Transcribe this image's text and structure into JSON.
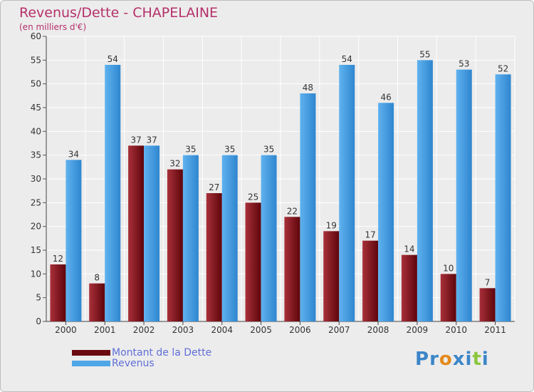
{
  "chart_data": {
    "type": "bar",
    "title": "Revenus/Dette - CHAPELAINE",
    "subtitle": "(en milliers d'€)",
    "categories": [
      "2000",
      "2001",
      "2002",
      "2003",
      "2004",
      "2005",
      "2006",
      "2007",
      "2008",
      "2009",
      "2010",
      "2011"
    ],
    "series": [
      {
        "name": "Montant de la Dette",
        "values": [
          12,
          8,
          37,
          32,
          27,
          25,
          22,
          19,
          17,
          14,
          10,
          7
        ],
        "color": "#7a0c14"
      },
      {
        "name": "Revenus",
        "values": [
          34,
          54,
          37,
          35,
          35,
          35,
          48,
          54,
          46,
          55,
          53,
          52
        ],
        "color": "#4ea6e6"
      }
    ],
    "ylim": [
      0,
      60
    ],
    "yticks": [
      0,
      5,
      10,
      15,
      20,
      25,
      30,
      35,
      40,
      45,
      50,
      55,
      60
    ],
    "grid": true,
    "legend": "bottom-left"
  },
  "logo": {
    "letters": [
      {
        "ch": "P",
        "color": "#3b86c9"
      },
      {
        "ch": "r",
        "color": "#3b86c9"
      },
      {
        "ch": "o",
        "color": "#e48a1c"
      },
      {
        "ch": "x",
        "color": "#3b86c9"
      },
      {
        "ch": "i",
        "color": "#3b86c9"
      },
      {
        "ch": "t",
        "color": "#8cc63f"
      },
      {
        "ch": "i",
        "color": "#3b86c9"
      }
    ]
  }
}
